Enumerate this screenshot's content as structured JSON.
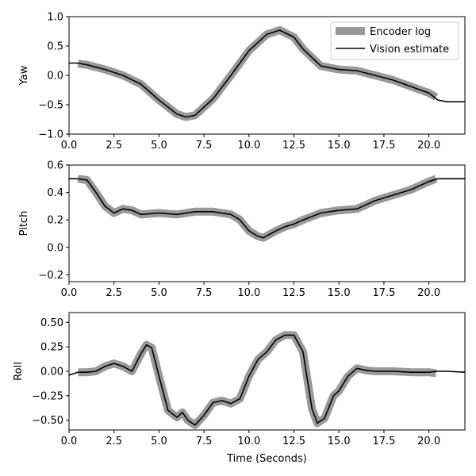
{
  "chart_data": [
    {
      "type": "line",
      "ylabel": "Yaw",
      "xlabel": "",
      "xlim": [
        0,
        22
      ],
      "ylim": [
        -1.0,
        1.0
      ],
      "xticks": [
        "0.0",
        "2.5",
        "5.0",
        "7.5",
        "10.0",
        "12.5",
        "15.0",
        "17.5",
        "20.0"
      ],
      "yticks": [
        "−1.0",
        "−0.5",
        "0.0",
        "0.5",
        "1.0"
      ],
      "legend": {
        "position": "top-right",
        "entries": [
          "Encoder log",
          "Vision estimate"
        ]
      },
      "series": [
        {
          "name": "Encoder log",
          "color": "#999999",
          "x": [
            0.5,
            1.0,
            2.0,
            3.0,
            4.0,
            5.0,
            6.0,
            6.5,
            7.0,
            8.0,
            9.0,
            10.0,
            11.0,
            11.7,
            12.5,
            13.0,
            14.0,
            15.0,
            16.0,
            17.0,
            18.0,
            19.0,
            20.0,
            20.4
          ],
          "y": [
            0.2,
            0.18,
            0.1,
            0.0,
            -0.15,
            -0.42,
            -0.66,
            -0.71,
            -0.68,
            -0.4,
            0.0,
            0.42,
            0.7,
            0.77,
            0.65,
            0.45,
            0.16,
            0.1,
            0.08,
            0.0,
            -0.08,
            -0.19,
            -0.3,
            -0.37
          ]
        },
        {
          "name": "Vision estimate",
          "color": "#000000",
          "x": [
            0.0,
            0.5,
            1.0,
            2.0,
            3.0,
            4.0,
            5.0,
            6.0,
            6.5,
            7.0,
            8.0,
            9.0,
            10.0,
            11.0,
            11.7,
            12.5,
            13.0,
            14.0,
            15.0,
            16.0,
            17.0,
            18.0,
            19.0,
            20.0,
            20.5,
            21.0,
            22.0
          ],
          "y": [
            0.21,
            0.21,
            0.18,
            0.1,
            0.0,
            -0.15,
            -0.42,
            -0.66,
            -0.71,
            -0.68,
            -0.4,
            0.0,
            0.42,
            0.7,
            0.77,
            0.65,
            0.45,
            0.16,
            0.1,
            0.08,
            0.0,
            -0.08,
            -0.19,
            -0.3,
            -0.42,
            -0.45,
            -0.45
          ]
        }
      ]
    },
    {
      "type": "line",
      "ylabel": "Pitch",
      "xlabel": "",
      "xlim": [
        0,
        22
      ],
      "ylim": [
        -0.25,
        0.6
      ],
      "xticks": [
        "0.0",
        "2.5",
        "5.0",
        "7.5",
        "10.0",
        "12.5",
        "15.0",
        "17.5",
        "20.0"
      ],
      "yticks": [
        "−0.2",
        "0.0",
        "0.2",
        "0.4",
        "0.6"
      ],
      "series": [
        {
          "name": "Encoder log",
          "color": "#999999",
          "x": [
            0.5,
            1.0,
            1.5,
            2.0,
            2.5,
            3.0,
            3.5,
            4.0,
            5.0,
            6.0,
            7.0,
            8.0,
            9.0,
            9.5,
            10.0,
            10.5,
            10.8,
            11.5,
            12.0,
            12.5,
            13.0,
            14.0,
            15.0,
            16.0,
            17.0,
            18.0,
            19.0,
            20.0,
            20.4
          ],
          "y": [
            0.5,
            0.49,
            0.4,
            0.3,
            0.25,
            0.28,
            0.27,
            0.24,
            0.25,
            0.24,
            0.26,
            0.26,
            0.24,
            0.2,
            0.12,
            0.08,
            0.07,
            0.12,
            0.15,
            0.17,
            0.2,
            0.25,
            0.27,
            0.28,
            0.34,
            0.38,
            0.42,
            0.48,
            0.5
          ]
        },
        {
          "name": "Vision estimate",
          "color": "#000000",
          "x": [
            0.0,
            0.5,
            1.0,
            1.5,
            2.0,
            2.5,
            3.0,
            3.5,
            4.0,
            5.0,
            6.0,
            7.0,
            8.0,
            9.0,
            9.5,
            10.0,
            10.5,
            10.8,
            11.5,
            12.0,
            12.5,
            13.0,
            14.0,
            15.0,
            16.0,
            17.0,
            18.0,
            19.0,
            20.0,
            20.5,
            22.0
          ],
          "y": [
            0.5,
            0.5,
            0.49,
            0.4,
            0.3,
            0.25,
            0.28,
            0.27,
            0.24,
            0.25,
            0.24,
            0.26,
            0.26,
            0.24,
            0.2,
            0.12,
            0.08,
            0.07,
            0.12,
            0.15,
            0.17,
            0.2,
            0.25,
            0.27,
            0.28,
            0.34,
            0.38,
            0.42,
            0.48,
            0.5,
            0.5
          ]
        }
      ]
    },
    {
      "type": "line",
      "ylabel": "Roll",
      "xlabel": "Time (Seconds)",
      "xlim": [
        0,
        22
      ],
      "ylim": [
        -0.6,
        0.6
      ],
      "xticks": [
        "0.0",
        "2.5",
        "5.0",
        "7.5",
        "10.0",
        "12.5",
        "15.0",
        "17.5",
        "20.0"
      ],
      "yticks": [
        "−0.50",
        "−0.25",
        "0.00",
        "0.25",
        "0.50"
      ],
      "series": [
        {
          "name": "Encoder log",
          "color": "#999999",
          "x": [
            0.5,
            1.0,
            1.5,
            2.0,
            2.5,
            3.0,
            3.5,
            4.0,
            4.3,
            4.6,
            5.0,
            5.5,
            6.0,
            6.3,
            6.6,
            7.0,
            7.5,
            8.0,
            8.5,
            9.0,
            9.5,
            10.0,
            10.5,
            11.0,
            11.5,
            12.0,
            12.5,
            13.0,
            13.5,
            13.8,
            14.2,
            14.7,
            15.0,
            15.5,
            16.0,
            16.5,
            17.0,
            18.0,
            19.0,
            20.0,
            20.4
          ],
          "y": [
            -0.01,
            -0.01,
            0.0,
            0.05,
            0.08,
            0.05,
            0.0,
            0.18,
            0.27,
            0.24,
            -0.05,
            -0.4,
            -0.47,
            -0.42,
            -0.5,
            -0.55,
            -0.45,
            -0.32,
            -0.3,
            -0.33,
            -0.28,
            -0.05,
            0.12,
            0.2,
            0.32,
            0.37,
            0.37,
            0.2,
            -0.38,
            -0.53,
            -0.48,
            -0.25,
            -0.2,
            -0.05,
            0.03,
            0.01,
            0.0,
            0.0,
            -0.01,
            -0.01,
            -0.02
          ]
        },
        {
          "name": "Vision estimate",
          "color": "#000000",
          "x": [
            0.0,
            0.5,
            1.0,
            1.5,
            2.0,
            2.5,
            3.0,
            3.5,
            4.0,
            4.3,
            4.6,
            5.0,
            5.5,
            6.0,
            6.3,
            6.6,
            7.0,
            7.5,
            8.0,
            8.5,
            9.0,
            9.5,
            10.0,
            10.5,
            11.0,
            11.5,
            12.0,
            12.5,
            13.0,
            13.5,
            13.8,
            14.2,
            14.7,
            15.0,
            15.5,
            16.0,
            16.5,
            17.0,
            18.0,
            19.0,
            20.0,
            20.5,
            21.0,
            22.0
          ],
          "y": [
            -0.04,
            -0.01,
            -0.01,
            0.0,
            0.05,
            0.08,
            0.05,
            0.0,
            0.18,
            0.27,
            0.24,
            -0.05,
            -0.4,
            -0.47,
            -0.42,
            -0.5,
            -0.55,
            -0.45,
            -0.32,
            -0.3,
            -0.33,
            -0.28,
            -0.05,
            0.12,
            0.2,
            0.32,
            0.37,
            0.37,
            0.2,
            -0.38,
            -0.53,
            -0.48,
            -0.25,
            -0.2,
            -0.05,
            0.03,
            0.01,
            0.0,
            0.0,
            -0.01,
            -0.01,
            0.0,
            0.0,
            -0.01
          ]
        }
      ]
    }
  ]
}
